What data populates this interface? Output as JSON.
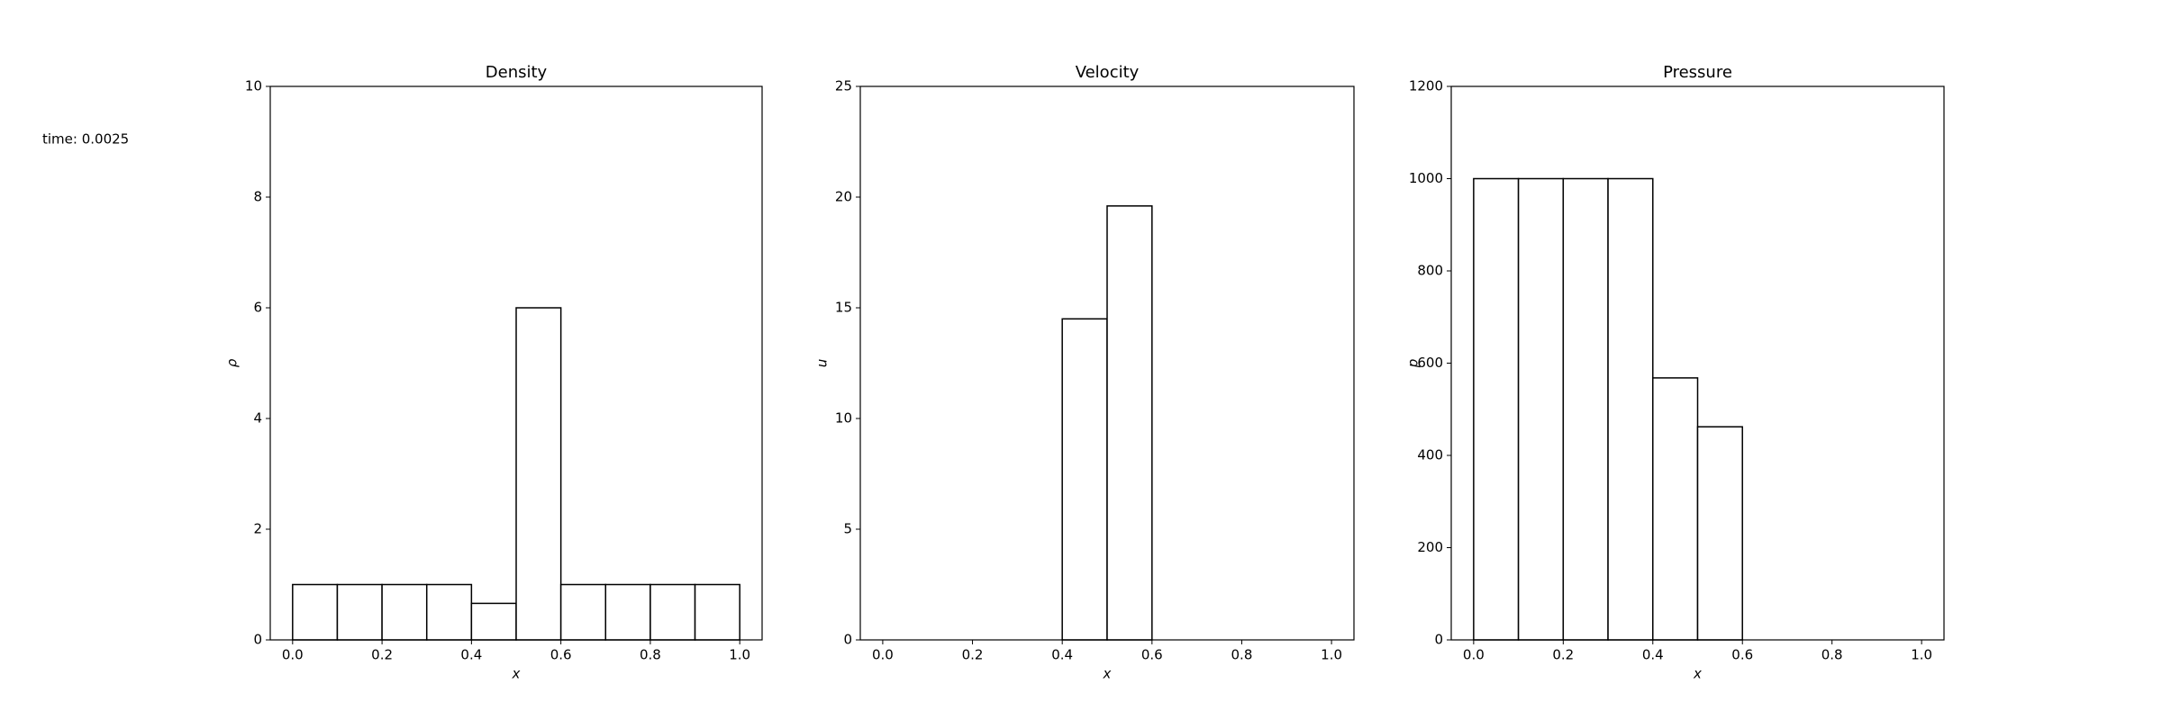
{
  "annotation": "time: 0.0025",
  "chart_data": [
    {
      "type": "histogram",
      "title": "Density",
      "xlabel": "x",
      "ylabel": "ρ",
      "bins": [
        0,
        0.1,
        0.2,
        0.3,
        0.4,
        0.5,
        0.6,
        0.7,
        0.8,
        0.9,
        1.0
      ],
      "values": [
        1,
        1,
        1,
        1,
        0.66,
        6,
        1,
        1,
        1,
        1
      ],
      "color": "#ffffff",
      "edgecolor": "#000000",
      "xlim": [
        -0.05,
        1.05
      ],
      "xticks": [
        {
          "value": 0,
          "label": "0.0"
        },
        {
          "value": 0.2,
          "label": "0.2"
        },
        {
          "value": 0.4,
          "label": "0.4"
        },
        {
          "value": 0.6,
          "label": "0.6"
        },
        {
          "value": 0.8,
          "label": "0.8"
        },
        {
          "value": 1,
          "label": "1.0"
        }
      ],
      "ylim": [
        0,
        10
      ],
      "yticks": [
        0,
        2,
        4,
        6,
        8,
        10
      ],
      "grid": false
    },
    {
      "type": "histogram",
      "title": "Velocity",
      "xlabel": "x",
      "ylabel": "u",
      "bins": [
        0,
        0.1,
        0.2,
        0.3,
        0.4,
        0.5,
        0.6,
        0.7,
        0.8,
        0.9,
        1.0
      ],
      "values": [
        0,
        0,
        0,
        0,
        14.5,
        19.6,
        0,
        0,
        0,
        0
      ],
      "color": "#ffffff",
      "edgecolor": "#000000",
      "xlim": [
        -0.05,
        1.05
      ],
      "xticks": [
        {
          "value": 0,
          "label": "0.0"
        },
        {
          "value": 0.2,
          "label": "0.2"
        },
        {
          "value": 0.4,
          "label": "0.4"
        },
        {
          "value": 0.6,
          "label": "0.6"
        },
        {
          "value": 0.8,
          "label": "0.8"
        },
        {
          "value": 1,
          "label": "1.0"
        }
      ],
      "ylim": [
        0,
        25
      ],
      "yticks": [
        0,
        5,
        10,
        15,
        20,
        25
      ],
      "grid": false
    },
    {
      "type": "histogram",
      "title": "Pressure",
      "xlabel": "x",
      "ylabel": "p",
      "bins": [
        0,
        0.1,
        0.2,
        0.3,
        0.4,
        0.5,
        0.6,
        0.7,
        0.8,
        0.9,
        1.0
      ],
      "values": [
        1000,
        1000,
        1000,
        1000,
        568,
        462,
        0,
        0,
        0,
        0
      ],
      "color": "#ffffff",
      "edgecolor": "#000000",
      "xlim": [
        -0.05,
        1.05
      ],
      "xticks": [
        {
          "value": 0,
          "label": "0.0"
        },
        {
          "value": 0.2,
          "label": "0.2"
        },
        {
          "value": 0.4,
          "label": "0.4"
        },
        {
          "value": 0.6,
          "label": "0.6"
        },
        {
          "value": 0.8,
          "label": "0.8"
        },
        {
          "value": 1,
          "label": "1.0"
        }
      ],
      "ylim": [
        0,
        1200
      ],
      "yticks": [
        0,
        200,
        400,
        600,
        800,
        1000,
        1200
      ],
      "grid": false
    }
  ]
}
